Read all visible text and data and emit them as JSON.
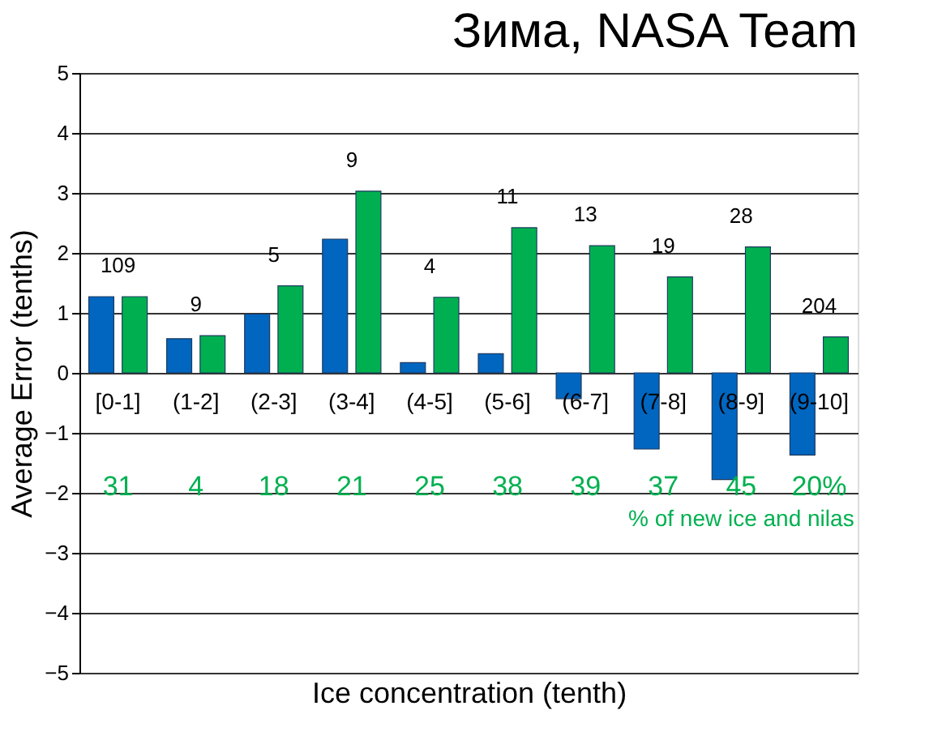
{
  "chart_data": {
    "type": "bar",
    "title": "Зима, NASA Team",
    "xlabel": "Ice concentration (tenth)",
    "ylabel": "Average Error (tenths)",
    "categories": [
      "[0-1]",
      "(1-2]",
      "(2-3]",
      "(3-4]",
      "(4-5]",
      "(5-6]",
      "(6-7]",
      "(7-8]",
      "(8-9]",
      "(9-10]"
    ],
    "series": [
      {
        "color": "#0066c0",
        "values": [
          1.27,
          0.57,
          0.98,
          2.23,
          0.17,
          0.32,
          -0.43,
          -1.27,
          -1.78,
          -1.37
        ]
      },
      {
        "color": "#00b050",
        "values": [
          1.27,
          0.62,
          1.45,
          3.03,
          1.26,
          2.42,
          2.12,
          1.6,
          2.1,
          0.6
        ]
      }
    ],
    "ylim": [
      -5,
      5
    ],
    "yticks": [
      -5,
      -4,
      -3,
      -2,
      -1,
      0,
      1,
      2,
      3,
      4,
      5
    ],
    "grid": "y",
    "legend": false,
    "annotations": [
      "109",
      "9",
      "5",
      "9",
      "4",
      "11",
      "13",
      "19",
      "28",
      "204",
      "31",
      "4",
      "18",
      "21",
      "25",
      "38",
      "39",
      "37",
      "45",
      "20%",
      "% of new ice and nilas"
    ]
  }
}
